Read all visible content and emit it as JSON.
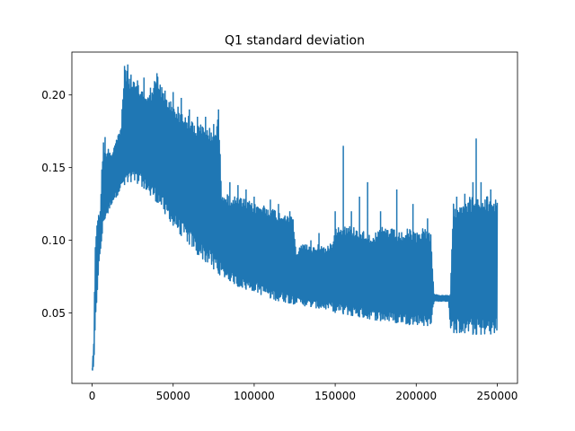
{
  "chart_data": {
    "type": "line",
    "title": "Q1 standard deviation",
    "xlabel": "",
    "ylabel": "",
    "xlim": [
      -12500,
      262500
    ],
    "ylim": [
      0.0015,
      0.2295
    ],
    "xticks": [
      0,
      50000,
      100000,
      150000,
      200000,
      250000
    ],
    "yticks": [
      0.05,
      0.1,
      0.15,
      0.2
    ],
    "ytick_labels": [
      "0.05",
      "0.10",
      "0.15",
      "0.20"
    ],
    "grid": false,
    "legend": "none",
    "line_color": "#1f77b4",
    "series": [
      {
        "envelope_x": [
          0,
          1000,
          2000,
          3000,
          4000,
          5000,
          6000,
          7000,
          8000,
          10000,
          12000,
          15000,
          18000,
          20000,
          22000,
          25000,
          30000,
          35000,
          40000,
          45000,
          50000,
          55000,
          60000,
          65000,
          70000,
          75000,
          78000,
          80000,
          85000,
          90000,
          95000,
          100000,
          105000,
          110000,
          115000,
          120000,
          124000,
          126000,
          130000,
          135000,
          140000,
          145000,
          148000,
          150000,
          155000,
          160000,
          165000,
          170000,
          175000,
          180000,
          185000,
          190000,
          195000,
          200000,
          205000,
          209000,
          211000,
          215000,
          220000,
          221000,
          223000,
          230000,
          235000,
          240000,
          245000,
          250000
        ],
        "envelope_upper": [
          0.012,
          0.03,
          0.1,
          0.115,
          0.118,
          0.12,
          0.15,
          0.17,
          0.16,
          0.165,
          0.16,
          0.17,
          0.18,
          0.22,
          0.215,
          0.21,
          0.205,
          0.2,
          0.215,
          0.2,
          0.195,
          0.19,
          0.185,
          0.18,
          0.18,
          0.175,
          0.185,
          0.135,
          0.13,
          0.13,
          0.128,
          0.125,
          0.125,
          0.123,
          0.12,
          0.12,
          0.118,
          0.09,
          0.1,
          0.095,
          0.098,
          0.095,
          0.1,
          0.11,
          0.11,
          0.11,
          0.108,
          0.105,
          0.105,
          0.11,
          0.108,
          0.105,
          0.108,
          0.105,
          0.11,
          0.105,
          0.063,
          0.062,
          0.062,
          0.063,
          0.125,
          0.13,
          0.13,
          0.13,
          0.13,
          0.13
        ],
        "envelope_lower": [
          0.01,
          0.012,
          0.04,
          0.06,
          0.08,
          0.09,
          0.1,
          0.11,
          0.115,
          0.118,
          0.125,
          0.13,
          0.135,
          0.138,
          0.14,
          0.14,
          0.138,
          0.132,
          0.126,
          0.118,
          0.11,
          0.103,
          0.097,
          0.09,
          0.085,
          0.08,
          0.077,
          0.075,
          0.072,
          0.068,
          0.066,
          0.065,
          0.062,
          0.06,
          0.058,
          0.057,
          0.056,
          0.057,
          0.055,
          0.054,
          0.053,
          0.052,
          0.052,
          0.05,
          0.049,
          0.048,
          0.047,
          0.046,
          0.045,
          0.044,
          0.043,
          0.043,
          0.042,
          0.042,
          0.041,
          0.041,
          0.058,
          0.058,
          0.058,
          0.04,
          0.036,
          0.036,
          0.035,
          0.035,
          0.035,
          0.036
        ],
        "spikes": [
          [
            8000,
            0.171
          ],
          [
            15000,
            0.165
          ],
          [
            20000,
            0.22
          ],
          [
            22000,
            0.221
          ],
          [
            24000,
            0.214
          ],
          [
            28000,
            0.21
          ],
          [
            32000,
            0.212
          ],
          [
            36000,
            0.205
          ],
          [
            40000,
            0.215
          ],
          [
            45000,
            0.203
          ],
          [
            50000,
            0.202
          ],
          [
            55000,
            0.198
          ],
          [
            60000,
            0.19
          ],
          [
            65000,
            0.185
          ],
          [
            70000,
            0.185
          ],
          [
            75000,
            0.18
          ],
          [
            78000,
            0.19
          ],
          [
            85000,
            0.14
          ],
          [
            90000,
            0.138
          ],
          [
            95000,
            0.135
          ],
          [
            100000,
            0.13
          ],
          [
            110000,
            0.128
          ],
          [
            115000,
            0.125
          ],
          [
            122000,
            0.12
          ],
          [
            135000,
            0.1
          ],
          [
            140000,
            0.105
          ],
          [
            150000,
            0.12
          ],
          [
            155000,
            0.165
          ],
          [
            160000,
            0.12
          ],
          [
            165000,
            0.13
          ],
          [
            170000,
            0.14
          ],
          [
            178000,
            0.12
          ],
          [
            188000,
            0.135
          ],
          [
            198000,
            0.125
          ],
          [
            207000,
            0.115
          ],
          [
            225000,
            0.13
          ],
          [
            230000,
            0.132
          ],
          [
            235000,
            0.14
          ],
          [
            237000,
            0.17
          ],
          [
            240000,
            0.14
          ],
          [
            246000,
            0.135
          ]
        ]
      }
    ]
  }
}
